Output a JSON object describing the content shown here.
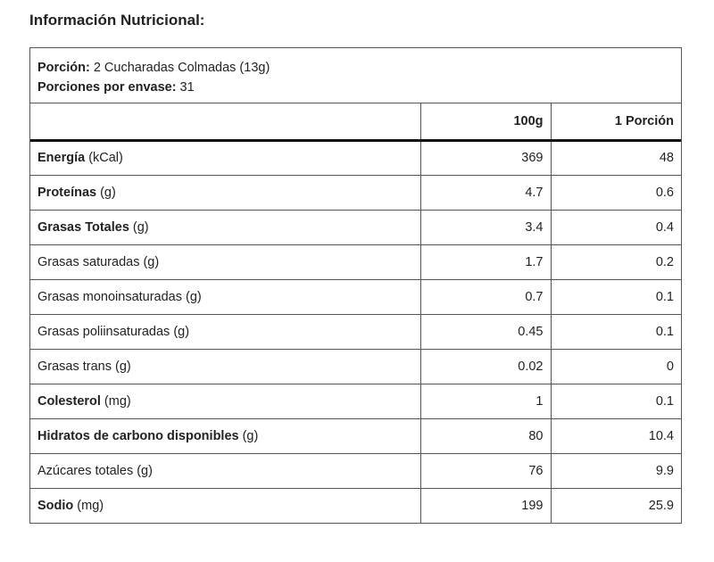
{
  "title": "Información Nutricional:",
  "serving": {
    "label": "Porción:",
    "text": "2 Cucharadas Colmadas (13g)"
  },
  "servings_per_container": {
    "label": "Porciones por envase:",
    "value": 31
  },
  "table": {
    "columns": [
      "100g",
      "1 Porción"
    ],
    "rows": [
      {
        "name": "Energía",
        "unit": "(kCal)",
        "bold": true,
        "values": [
          369,
          48
        ]
      },
      {
        "name": "Proteínas",
        "unit": "(g)",
        "bold": true,
        "values": [
          4.7,
          0.6
        ]
      },
      {
        "name": "Grasas Totales",
        "unit": "(g)",
        "bold": true,
        "values": [
          3.4,
          0.4
        ]
      },
      {
        "name": "Grasas saturadas",
        "unit": "(g)",
        "bold": false,
        "values": [
          1.7,
          0.2
        ]
      },
      {
        "name": "Grasas monoinsaturadas",
        "unit": "(g)",
        "bold": false,
        "values": [
          0.7,
          0.1
        ]
      },
      {
        "name": "Grasas poliinsaturadas",
        "unit": "(g)",
        "bold": false,
        "values": [
          0.45,
          0.1
        ]
      },
      {
        "name": "Grasas trans",
        "unit": "(g)",
        "bold": false,
        "values": [
          0.02,
          0
        ]
      },
      {
        "name": "Colesterol",
        "unit": "(mg)",
        "bold": true,
        "values": [
          1,
          0.1
        ]
      },
      {
        "name": "Hidratos de carbono disponibles",
        "unit": "(g)",
        "bold": true,
        "values": [
          80,
          10.4
        ]
      },
      {
        "name": "Azúcares totales",
        "unit": "(g)",
        "bold": false,
        "values": [
          76,
          9.9
        ]
      },
      {
        "name": "Sodio",
        "unit": "(mg)",
        "bold": true,
        "values": [
          199,
          25.9
        ]
      }
    ]
  }
}
